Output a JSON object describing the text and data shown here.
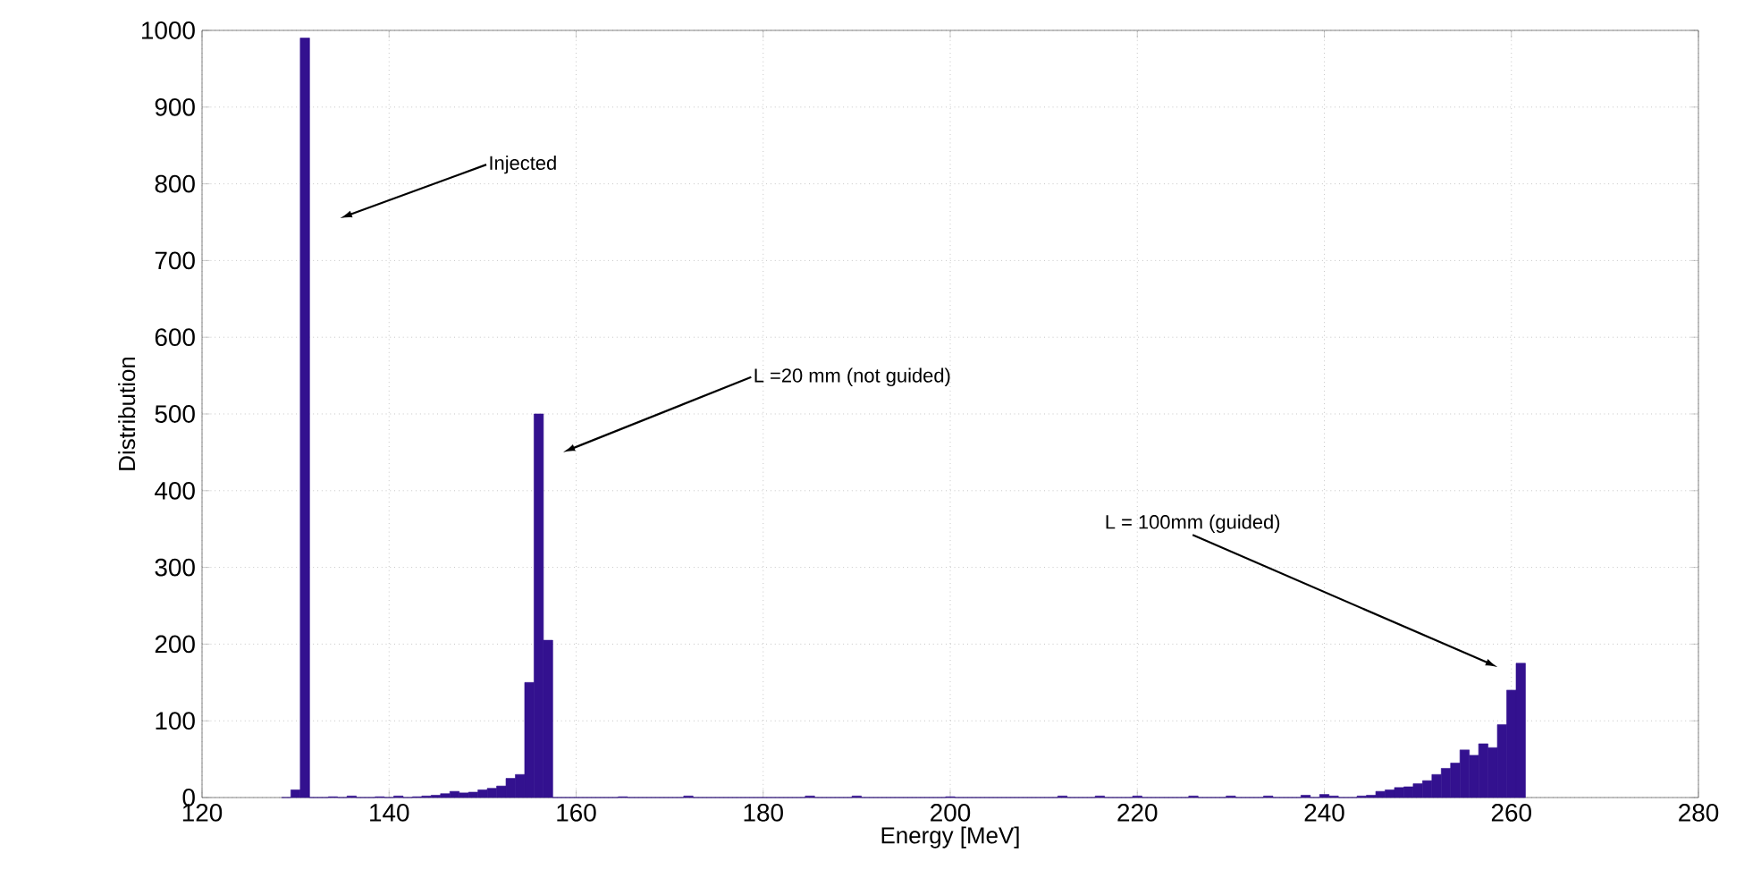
{
  "chart_data": {
    "type": "histogram",
    "xlabel": "Energy [MeV]",
    "ylabel": "Distribution",
    "color": "#33118f",
    "bins": [
      128.5,
      129.5,
      130.5,
      131.5,
      132.5,
      133.5,
      134.5,
      135.5,
      136.5,
      137.5,
      138.5,
      139.5,
      140.5,
      141.5,
      142.5,
      143.5,
      144.5,
      145.5,
      146.5,
      147.5,
      148.5,
      149.5,
      150.5,
      151.5,
      152.5,
      153.5,
      154.5,
      155.5,
      156.5,
      157.5,
      158.5,
      159.5,
      160.5,
      161.5,
      162.5,
      163.5,
      164.5,
      165.5,
      166.5,
      167.5,
      168.5,
      169.5,
      170.5,
      171.5,
      172.5,
      173.5,
      174.5,
      175.5,
      176.5,
      177.5,
      178.5,
      179.5,
      180.5,
      181.5,
      182.5,
      183.5,
      184.5,
      185.5,
      186.5,
      187.5,
      188.5,
      189.5,
      190.5,
      191.5,
      192.5,
      193.5,
      194.5,
      195.5,
      196.5,
      197.5,
      198.5,
      199.5,
      200.5,
      201.5,
      202.5,
      203.5,
      204.5,
      205.5,
      206.5,
      207.5,
      208.5,
      209.5,
      210.5,
      211.5,
      212.5,
      213.5,
      214.5,
      215.5,
      216.5,
      217.5,
      218.5,
      219.5,
      220.5,
      221.5,
      222.5,
      223.5,
      224.5,
      225.5,
      226.5,
      227.5,
      228.5,
      229.5,
      230.5,
      231.5,
      232.5,
      233.5,
      234.5,
      235.5,
      236.5,
      237.5,
      238.5,
      239.5,
      240.5,
      241.5,
      242.5,
      243.5,
      244.5,
      245.5,
      246.5,
      247.5,
      248.5,
      249.5,
      250.5,
      251.5,
      252.5,
      253.5,
      254.5,
      255.5,
      256.5,
      257.5,
      258.5,
      259.5,
      260.5,
      261.5
    ],
    "values": [
      0,
      10,
      990,
      0,
      0,
      1,
      0,
      2,
      0,
      0,
      1,
      0,
      2,
      0,
      1,
      2,
      3,
      5,
      8,
      6,
      7,
      10,
      12,
      15,
      25,
      30,
      150,
      500,
      205,
      0,
      0,
      0,
      0,
      0,
      0,
      0,
      1,
      0,
      0,
      0,
      0,
      0,
      0,
      2,
      0,
      0,
      0,
      0,
      0,
      0,
      0,
      0,
      0,
      0,
      0,
      0,
      2,
      0,
      0,
      0,
      0,
      2,
      0,
      0,
      0,
      0,
      0,
      0,
      0,
      0,
      0,
      1,
      0,
      0,
      0,
      0,
      0,
      0,
      0,
      0,
      0,
      0,
      0,
      2,
      0,
      0,
      0,
      2,
      0,
      0,
      0,
      2,
      0,
      0,
      0,
      0,
      0,
      2,
      0,
      0,
      0,
      2,
      0,
      0,
      0,
      2,
      0,
      0,
      0,
      3,
      0,
      4,
      2,
      0,
      0,
      2,
      3,
      8,
      10,
      13,
      14,
      18,
      22,
      30,
      38,
      45,
      62,
      55,
      70,
      65,
      95,
      140,
      175
    ],
    "xlim": [
      120,
      280
    ],
    "ylim": [
      0,
      1000
    ],
    "xticks": [
      120,
      140,
      160,
      180,
      200,
      220,
      240,
      260,
      280
    ],
    "yticks": [
      0,
      100,
      200,
      300,
      400,
      500,
      600,
      700,
      800,
      900,
      1000
    ],
    "grid": true,
    "annotations": [
      "Injected",
      "L =20 mm (not guided)",
      "L = 100mm (guided)"
    ]
  }
}
